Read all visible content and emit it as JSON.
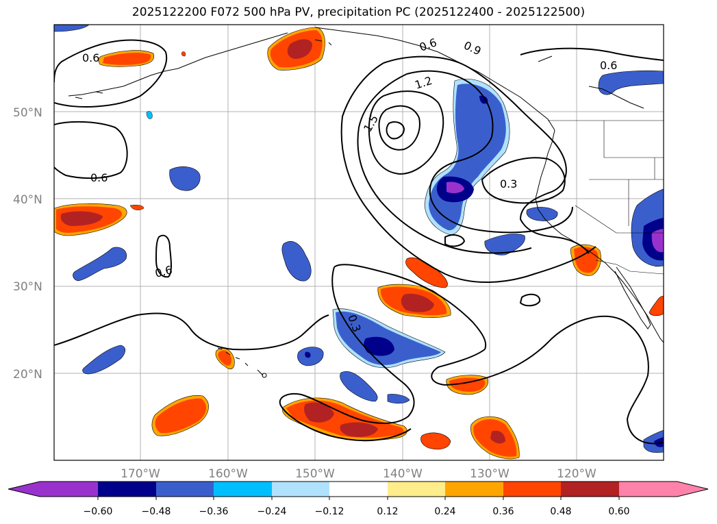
{
  "title": "2025122200 F072 500 hPa PV, precipitation PC (2025122400 - 2025122500)",
  "map": {
    "lat_ticks": [
      "50°N",
      "40°N",
      "30°N",
      "20°N"
    ],
    "lon_ticks": [
      "170°W",
      "160°W",
      "150°W",
      "140°W",
      "130°W",
      "120°W"
    ],
    "contour_labels": [
      "0.6",
      "0.6",
      "0.6",
      "0.6",
      "0.6",
      "0.9",
      "1.2",
      "1.5",
      "0.3",
      "0.3"
    ],
    "fill_colors": {
      "neg_060": "#9932cc",
      "neg_048": "#00008b",
      "neg_036": "#3a5fcd",
      "neg_024": "#00bfff",
      "neg_012": "#b0e2ff",
      "pos_012": "#ffec8b",
      "pos_024": "#ffa500",
      "pos_036": "#ff4500",
      "pos_048": "#b22222",
      "pos_060": "#ff82ab"
    }
  },
  "colorbar": {
    "labels": [
      "−0.60",
      "−0.48",
      "−0.36",
      "−0.24",
      "−0.12",
      "0.12",
      "0.24",
      "0.36",
      "0.48",
      "0.60"
    ],
    "colors": [
      "#9932cc",
      "#00008b",
      "#3a5fcd",
      "#00bfff",
      "#b0e2ff",
      "#ffffff",
      "#ffec8b",
      "#ffa500",
      "#ff4500",
      "#b22222",
      "#ff82ab"
    ]
  }
}
